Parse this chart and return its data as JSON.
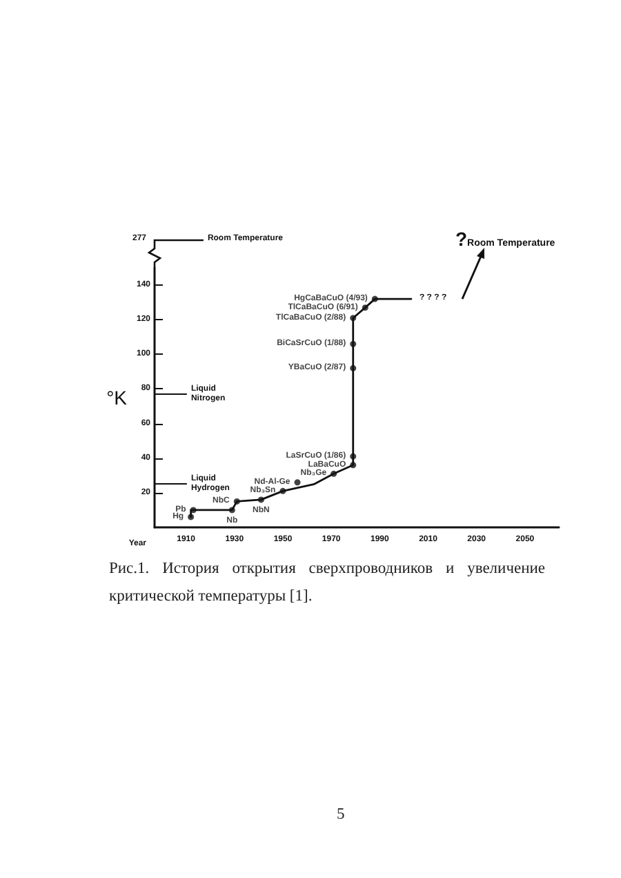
{
  "chart_data": {
    "type": "line",
    "xlabel": "Year",
    "ylabel": "°K",
    "xlim": [
      1897,
      2064
    ],
    "xticks": [
      1910,
      1930,
      1950,
      1970,
      1990,
      2010,
      2030,
      2050
    ],
    "ylim": [
      0,
      150
    ],
    "yticks": [
      20,
      40,
      60,
      80,
      100,
      120,
      140
    ],
    "grid": false,
    "line_style": "solid",
    "series": [
      {
        "marker": "none",
        "color": "#111111",
        "x": [
          1912,
          1912,
          1913,
          1926,
          1929,
          1931,
          1941,
          1950,
          1963,
          1971,
          1979,
          1979,
          1979,
          1979,
          1979,
          1984,
          1988,
          2003
        ],
        "values": [
          6,
          10,
          10,
          10,
          10,
          15,
          16,
          21,
          25,
          31,
          36,
          41,
          92,
          106,
          121,
          127,
          132,
          132
        ]
      },
      {
        "type": "scatter",
        "marker": "circle",
        "color": "#111111",
        "x": [
          1912,
          1913,
          1929,
          1931,
          1941,
          1950,
          1956,
          1971,
          1979,
          1979,
          1979,
          1979,
          1979,
          1984,
          1988
        ],
        "values": [
          6,
          10,
          10,
          15,
          16,
          21,
          26,
          31,
          36,
          41,
          92,
          106,
          121,
          127,
          132
        ],
        "value_labels": [
          "Hg",
          "Pb",
          "Nb",
          "NbC",
          "NbN",
          "Nb₃Sn",
          "Nd-Al-Ge",
          "Nb₃Ge",
          "LaBaCuO",
          "LaSrCuO (1/86)",
          "YBaCuO (2/87)",
          "BiCaSrCuO (1/88)",
          "TlCaBaCuO (2/88)",
          "TlCaBaCuO (6/91)",
          "HgCaBaCuO (4/93)"
        ]
      }
    ],
    "ref_lines": [
      {
        "axis": "y",
        "value": 77,
        "label": "Liquid Nitrogen",
        "color": "#111111"
      },
      {
        "axis": "y",
        "value": 25,
        "label": "Liquid Hydrogen",
        "color": "#111111"
      }
    ],
    "annotations": [
      "277",
      "Room Temperature",
      "? ? ? ?",
      "?Room Temperature",
      "Рис.1. История открытия сверхпроводников и увеличение критической температуры [1].",
      "5"
    ]
  }
}
